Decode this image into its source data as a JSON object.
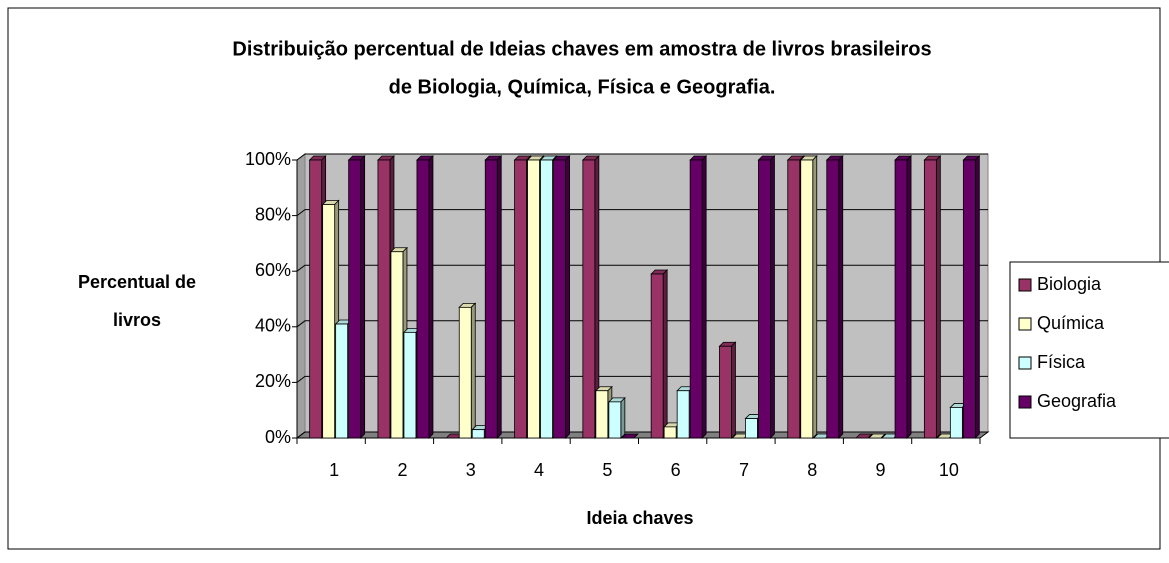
{
  "chart_data": {
    "type": "bar3d",
    "title": [
      "Distribuição percentual de Ideias chaves em amostra de livros brasileiros",
      "de Biologia, Química, Física e Geografia."
    ],
    "y_axis_label": [
      "Percentual de",
      "livros"
    ],
    "x_axis_label": "Ideia chaves",
    "categories": [
      "1",
      "2",
      "3",
      "4",
      "5",
      "6",
      "7",
      "8",
      "9",
      "10"
    ],
    "series": [
      {
        "name": "Biologia",
        "color": "#993366",
        "values": [
          100,
          100,
          0,
          100,
          100,
          59,
          33,
          100,
          0,
          100
        ]
      },
      {
        "name": "Química",
        "color": "#FFFFCC",
        "values": [
          84,
          67,
          47,
          100,
          17,
          4,
          0,
          100,
          0,
          0
        ]
      },
      {
        "name": "Física",
        "color": "#CCFFFF",
        "values": [
          41,
          38,
          3,
          100,
          13,
          17,
          7,
          0,
          0,
          11
        ]
      },
      {
        "name": "Geografia",
        "color": "#660066",
        "values": [
          100,
          100,
          100,
          100,
          0,
          100,
          100,
          100,
          100,
          100
        ]
      }
    ],
    "ylim": [
      0,
      100
    ],
    "yticks": [
      {
        "value": 0,
        "label": "0%"
      },
      {
        "value": 20,
        "label": "20%"
      },
      {
        "value": 40,
        "label": "40%"
      },
      {
        "value": 60,
        "label": "60%"
      },
      {
        "value": 80,
        "label": "80%"
      },
      {
        "value": 100,
        "label": "100%"
      }
    ],
    "grid": true,
    "legend": "right"
  }
}
